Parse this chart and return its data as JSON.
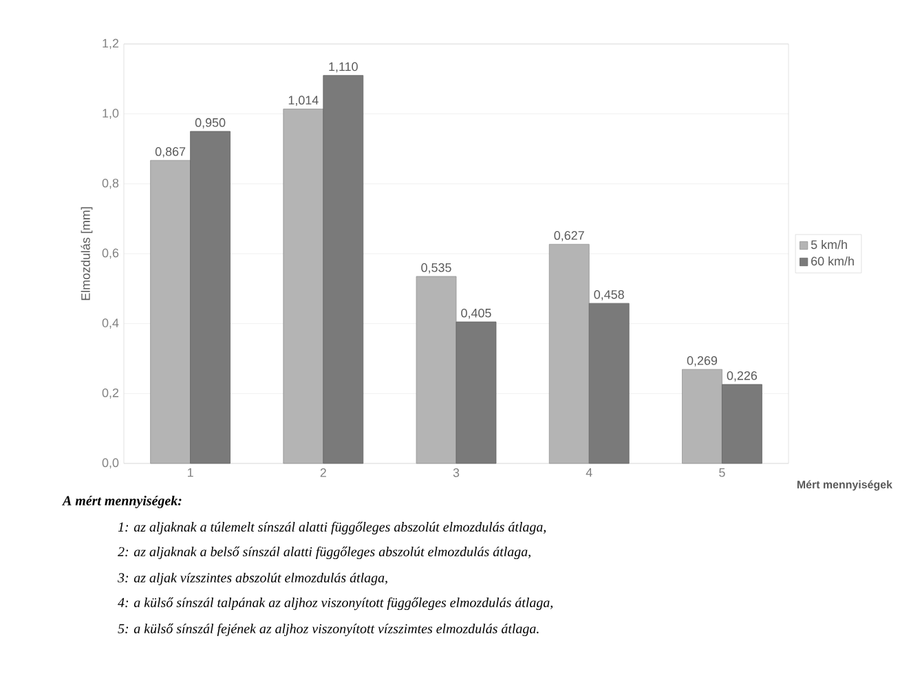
{
  "chart_data": {
    "type": "bar",
    "ylabel": "Elmozdulás [mm]",
    "xlabel": "Mért mennyiségek",
    "categories": [
      "1",
      "2",
      "3",
      "4",
      "5"
    ],
    "series": [
      {
        "name": "5 km/h",
        "color": "#b4b4b4",
        "values": [
          0.867,
          1.014,
          0.535,
          0.627,
          0.269
        ],
        "value_labels": [
          "0,867",
          "1,014",
          "0,535",
          "0,627",
          "0,269"
        ]
      },
      {
        "name": "60 km/h",
        "color": "#7a7a7a",
        "values": [
          0.95,
          1.11,
          0.405,
          0.458,
          0.226
        ],
        "value_labels": [
          "0,950",
          "1,110",
          "0,405",
          "0,458",
          "0,226"
        ]
      }
    ],
    "ylim": [
      0,
      1.2
    ],
    "yticks": [
      {
        "value": 0,
        "label": "0,0"
      },
      {
        "value": 0.2,
        "label": "0,2"
      },
      {
        "value": 0.4,
        "label": "0,4"
      },
      {
        "value": 0.6,
        "label": "0,6"
      },
      {
        "value": 0.8,
        "label": "0,8"
      },
      {
        "value": 1.0,
        "label": "1,0"
      },
      {
        "value": 1.2,
        "label": "1,2"
      }
    ],
    "grid": "y",
    "legend": "right",
    "annotations": [
      "A mért mennyiségek:",
      "1:   az aljaknak a túlemelt sínszál alatti függőleges abszolút elmozdulás átlaga,",
      "2:   az aljaknak a belső sínszál alatti függőleges abszolút elmozdulás átlaga,",
      "3:   az aljak vízszintes abszolút elmozdulás átlaga,",
      "4:  a külső sínszál talpának az aljhoz viszonyított függőleges elmozdulás átlaga,",
      "5:  a külső sínszál fejének az aljhoz viszonyított vízszimtes elmozdulás átlaga."
    ]
  }
}
